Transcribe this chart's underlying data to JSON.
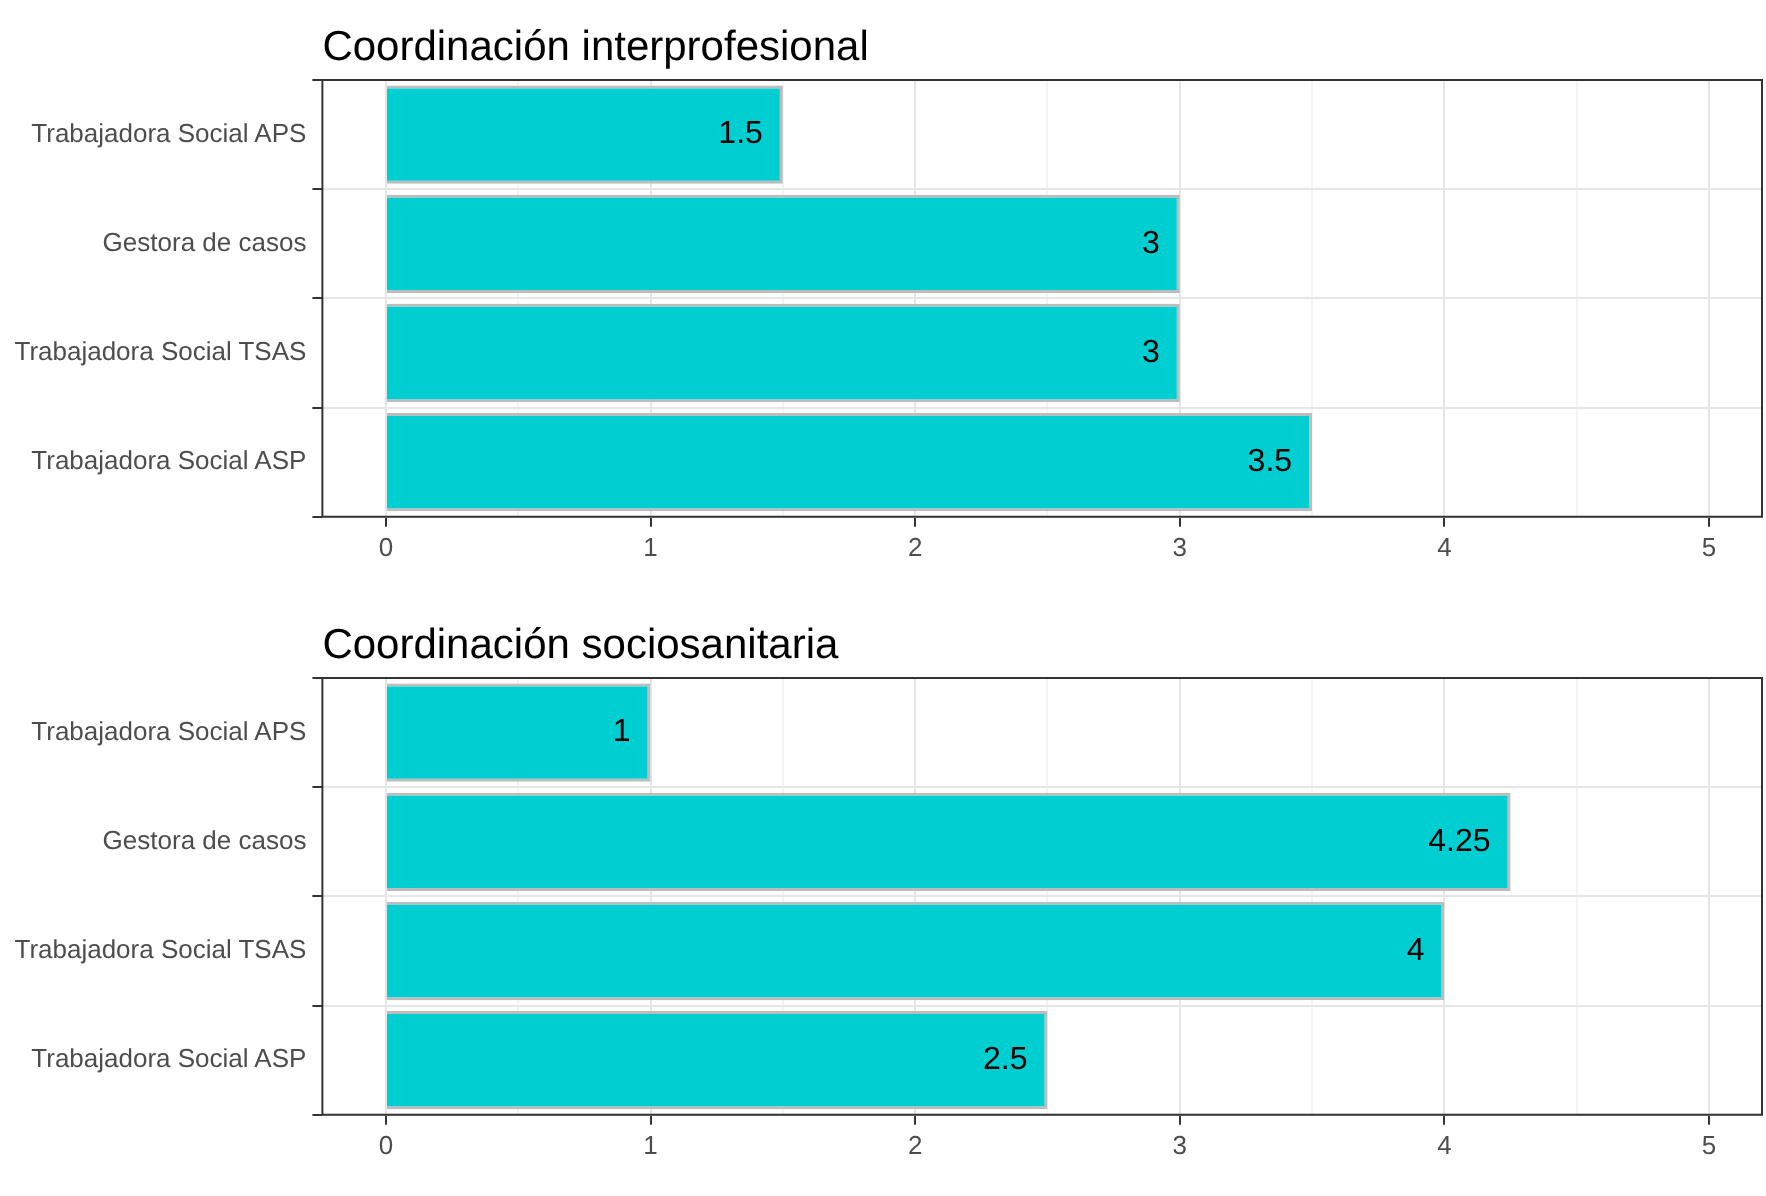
{
  "chart_data": [
    {
      "type": "bar",
      "orientation": "horizontal",
      "title": "Coordinación interprofesional",
      "categories": [
        "Trabajadora Social APS",
        "Gestora de casos",
        "Trabajadora Social TSAS",
        "Trabajadora Social ASP"
      ],
      "values": [
        1.5,
        3,
        3,
        3.5
      ],
      "color": "#00ced1",
      "data_labels": true,
      "grid": true,
      "legend": false,
      "xlim": [
        -0.24,
        5.2
      ],
      "xticks": [
        0,
        {
          "value": 0.5,
          "label": null
        },
        1,
        {
          "value": 1.5,
          "label": null
        },
        2,
        {
          "value": 2.5,
          "label": null
        },
        3,
        {
          "value": 3.5,
          "label": null
        },
        4,
        {
          "value": 4.5,
          "label": null
        },
        5
      ]
    },
    {
      "type": "bar",
      "orientation": "horizontal",
      "title": "Coordinación sociosanitaria",
      "categories": [
        "Trabajadora Social APS",
        "Gestora de casos",
        "Trabajadora Social TSAS",
        "Trabajadora Social ASP"
      ],
      "values": [
        1,
        4.25,
        4,
        2.5
      ],
      "color": "#00ced1",
      "data_labels": true,
      "grid": true,
      "legend": false,
      "xlim": [
        -0.24,
        5.2
      ],
      "xticks": [
        0,
        {
          "value": 0.5,
          "label": null
        },
        1,
        {
          "value": 1.5,
          "label": null
        },
        2,
        {
          "value": 2.5,
          "label": null
        },
        3,
        {
          "value": 3.5,
          "label": null
        },
        4,
        {
          "value": 4.5,
          "label": null
        },
        5
      ]
    }
  ]
}
